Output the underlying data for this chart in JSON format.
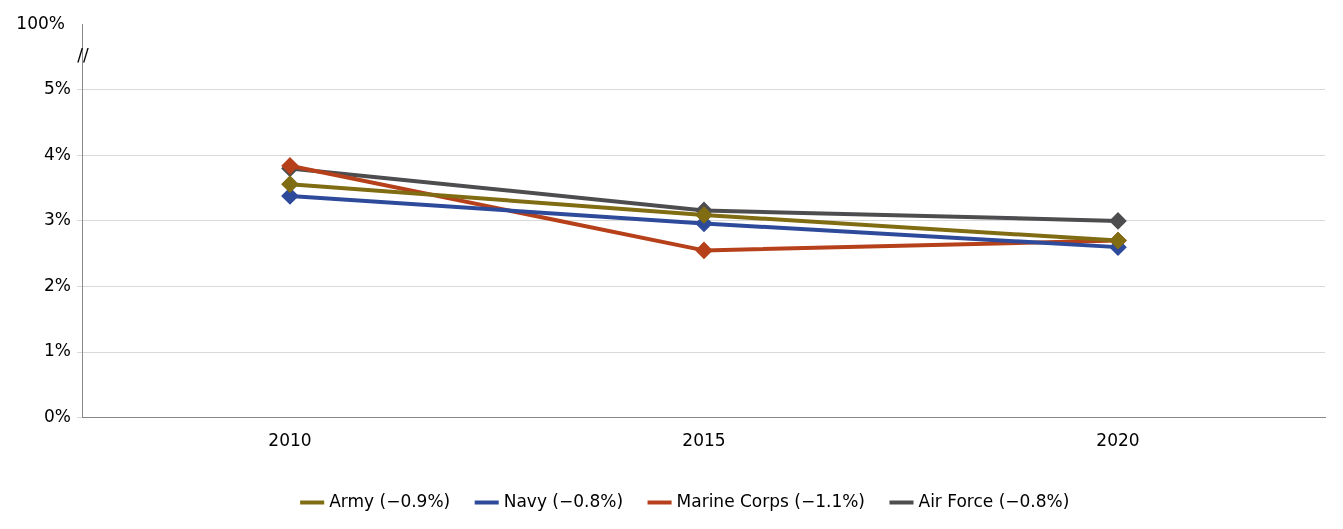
{
  "chart_data": {
    "type": "line",
    "categories": [
      "2010",
      "2015",
      "2020"
    ],
    "series": [
      {
        "name": "Army (−0.9%)",
        "color": "#806c12",
        "values": [
          3.56,
          3.09,
          2.7
        ]
      },
      {
        "name": "Navy (−0.8%)",
        "color": "#2e4a9a",
        "values": [
          3.38,
          2.96,
          2.6
        ]
      },
      {
        "name": "Marine Corps (−1.1%)",
        "color": "#b5401a",
        "values": [
          3.84,
          2.55,
          2.7
        ]
      },
      {
        "name": "Air Force (−0.8%)",
        "color": "#4d4d4f",
        "values": [
          3.8,
          3.16,
          3.0
        ]
      }
    ],
    "ylim": [
      0,
      6
    ],
    "yticks": [
      {
        "value": 0,
        "label": "0%"
      },
      {
        "value": 1,
        "label": "1%"
      },
      {
        "value": 2,
        "label": "2%"
      },
      {
        "value": 3,
        "label": "3%"
      },
      {
        "value": 4,
        "label": "4%"
      },
      {
        "value": 5,
        "label": "5%"
      }
    ],
    "annotations": [
      "100%",
      "//"
    ],
    "grid": "y",
    "legend": "bottom",
    "marker": "diamond",
    "line_style": "solid"
  }
}
